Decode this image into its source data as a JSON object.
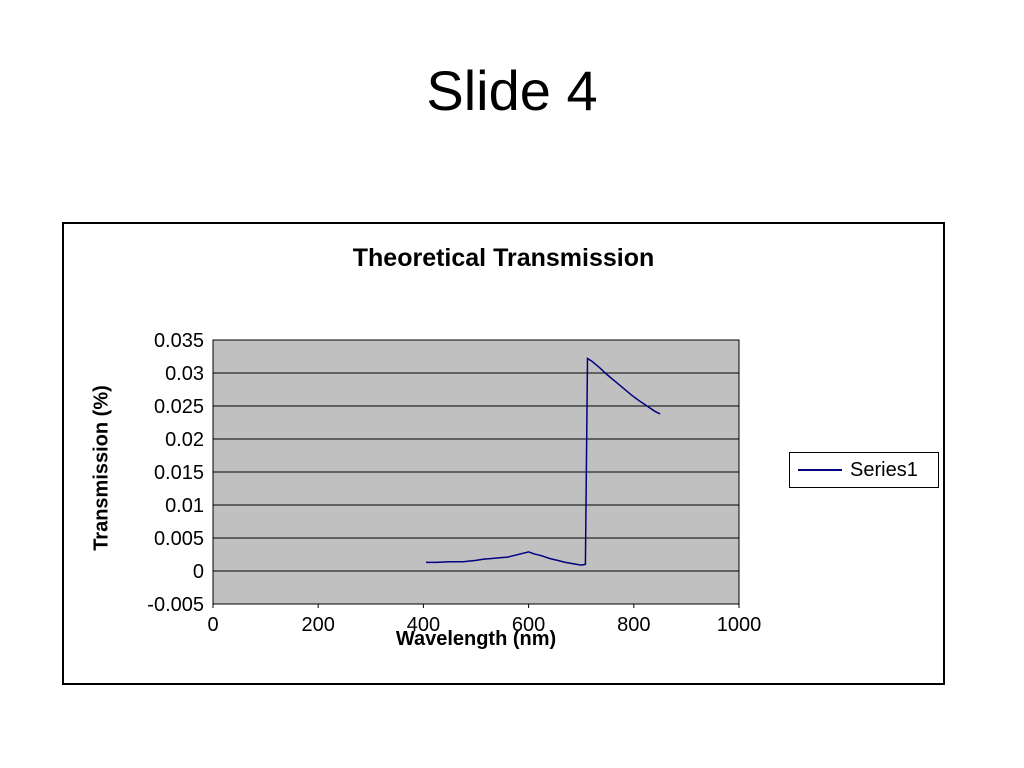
{
  "slide": {
    "title": "Slide 4"
  },
  "chart": {
    "title": "Theoretical Transmission",
    "x_axis_label": "Wavelength (nm)",
    "y_axis_label": "Transmission (%)",
    "legend": {
      "series_label": "Series1"
    },
    "colors": {
      "plot_bg": "#c0c0c0",
      "grid": "#000000",
      "line": "#000080",
      "frame": "#000000"
    }
  },
  "chart_data": {
    "type": "line",
    "title": "Theoretical Transmission",
    "xlabel": "Wavelength (nm)",
    "ylabel": "Transmission (%)",
    "xlim": [
      0,
      1000
    ],
    "ylim": [
      -0.005,
      0.035
    ],
    "x_ticks": [
      0,
      200,
      400,
      600,
      800,
      1000
    ],
    "y_ticks": [
      -0.005,
      0,
      0.005,
      0.01,
      0.015,
      0.02,
      0.025,
      0.03,
      0.035
    ],
    "grid": "horizontal",
    "legend_position": "right",
    "series": [
      {
        "name": "Series1",
        "color": "#000080",
        "points": [
          [
            405,
            0.0013
          ],
          [
            425,
            0.0013
          ],
          [
            450,
            0.0014
          ],
          [
            475,
            0.0014
          ],
          [
            500,
            0.0016
          ],
          [
            515,
            0.0018
          ],
          [
            530,
            0.0019
          ],
          [
            545,
            0.002
          ],
          [
            560,
            0.0021
          ],
          [
            575,
            0.0024
          ],
          [
            590,
            0.0027
          ],
          [
            600,
            0.0029
          ],
          [
            610,
            0.0026
          ],
          [
            625,
            0.0023
          ],
          [
            640,
            0.0019
          ],
          [
            655,
            0.0016
          ],
          [
            670,
            0.0013
          ],
          [
            685,
            0.0011
          ],
          [
            700,
            0.0009
          ],
          [
            708,
            0.001
          ],
          [
            712,
            0.0322
          ],
          [
            720,
            0.0318
          ],
          [
            735,
            0.0308
          ],
          [
            750,
            0.0297
          ],
          [
            765,
            0.0287
          ],
          [
            780,
            0.0277
          ],
          [
            795,
            0.0267
          ],
          [
            810,
            0.0258
          ],
          [
            825,
            0.025
          ],
          [
            840,
            0.0242
          ],
          [
            850,
            0.0238
          ]
        ]
      }
    ]
  }
}
